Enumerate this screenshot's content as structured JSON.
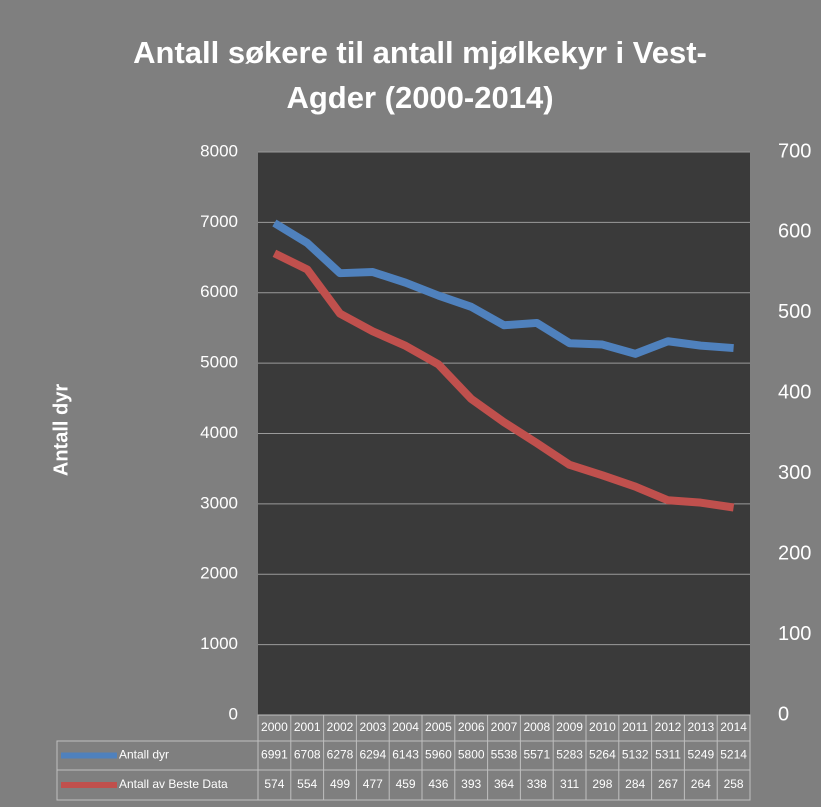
{
  "chart_data": {
    "type": "line",
    "title": [
      "Antall søkere til antall  mjølkekyr i Vest-",
      "Agder (2000-2014)"
    ],
    "ylabel": "Antall dyr",
    "categories": [
      "2000",
      "2001",
      "2002",
      "2003",
      "2004",
      "2005",
      "2006",
      "2007",
      "2008",
      "2009",
      "2010",
      "2011",
      "2012",
      "2013",
      "2014"
    ],
    "series": [
      {
        "name": "Antall dyr",
        "color": "#4f81bd",
        "values": [
          6991,
          6708,
          6278,
          6294,
          6143,
          5960,
          5800,
          5538,
          5571,
          5283,
          5264,
          5132,
          5311,
          5249,
          5214
        ]
      },
      {
        "name": "Antall av Beste Data",
        "color": "#c0504d",
        "axis": "y2",
        "values": [
          574,
          554,
          499,
          477,
          459,
          436,
          393,
          364,
          338,
          311,
          298,
          284,
          267,
          264,
          258
        ]
      }
    ],
    "ylim": [
      0,
      8000
    ],
    "yticks": [
      0,
      1000,
      2000,
      3000,
      4000,
      5000,
      6000,
      7000,
      8000
    ],
    "y2lim": [
      0,
      700
    ],
    "y2ticks": [
      0,
      100,
      200,
      300,
      400,
      500,
      600,
      700
    ],
    "grid": true
  }
}
